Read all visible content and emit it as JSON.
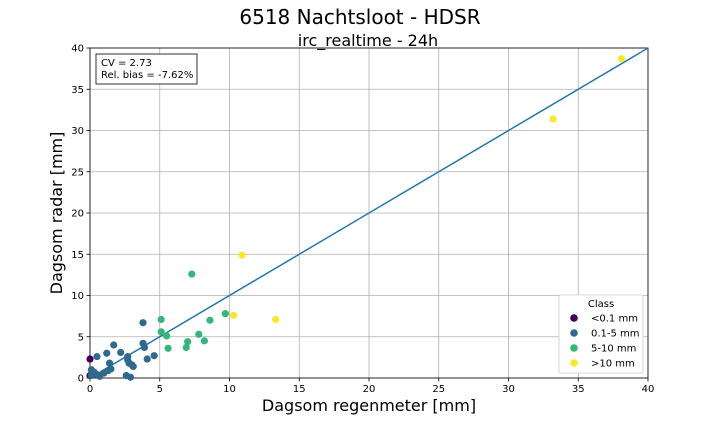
{
  "chart_data": {
    "type": "scatter",
    "title": "6518 Nachtsloot - HDSR",
    "subtitle": "irc_realtime - 24h",
    "xlabel": "Dagsom regenmeter [mm]",
    "ylabel": "Dagsom radar [mm]",
    "xlim": [
      0,
      40
    ],
    "ylim": [
      0,
      40
    ],
    "xticks": [
      "0",
      "5",
      "10",
      "15",
      "20",
      "25",
      "30",
      "35",
      "40"
    ],
    "yticks": [
      "0",
      "5",
      "10",
      "15",
      "20",
      "25",
      "30",
      "35",
      "40"
    ],
    "grid": true,
    "stats": [
      "CV = 2.73",
      "Rel. bias = -7.62%"
    ],
    "reference_line": {
      "points": [
        [
          0,
          0
        ],
        [
          40,
          40
        ]
      ],
      "color": "#1f77b4"
    },
    "legend": {
      "title": "Class",
      "placement": "lower right"
    },
    "series": [
      {
        "name": "<0.1 mm",
        "color": "#440154",
        "points": [
          [
            0.0,
            2.3
          ],
          [
            0.0,
            0.3
          ]
        ]
      },
      {
        "name": "0.1-5 mm",
        "color": "#31688e",
        "points": [
          [
            0.1,
            0.3
          ],
          [
            0.1,
            1.0
          ],
          [
            0.3,
            0.7
          ],
          [
            0.5,
            0.4
          ],
          [
            0.5,
            2.6
          ],
          [
            0.7,
            0.2
          ],
          [
            1.0,
            0.6
          ],
          [
            1.2,
            3.0
          ],
          [
            1.3,
            0.9
          ],
          [
            1.4,
            1.8
          ],
          [
            1.5,
            1.1
          ],
          [
            1.7,
            4.0
          ],
          [
            2.2,
            3.1
          ],
          [
            2.6,
            0.3
          ],
          [
            2.7,
            2.6
          ],
          [
            2.7,
            2.2
          ],
          [
            2.8,
            1.8
          ],
          [
            2.9,
            0.1
          ],
          [
            3.0,
            1.6
          ],
          [
            3.1,
            1.4
          ],
          [
            3.8,
            6.7
          ],
          [
            3.8,
            4.2
          ],
          [
            3.9,
            3.7
          ],
          [
            4.1,
            2.3
          ],
          [
            4.6,
            2.7
          ]
        ]
      },
      {
        "name": "5-10 mm",
        "color": "#35b779",
        "points": [
          [
            5.1,
            7.1
          ],
          [
            5.1,
            5.6
          ],
          [
            5.5,
            5.1
          ],
          [
            5.6,
            3.6
          ],
          [
            6.9,
            3.7
          ],
          [
            7.0,
            4.4
          ],
          [
            7.3,
            12.6
          ],
          [
            7.8,
            5.3
          ],
          [
            8.2,
            4.5
          ],
          [
            8.6,
            7.0
          ],
          [
            9.7,
            7.8
          ]
        ]
      },
      {
        "name": ">10 mm",
        "color": "#fde725",
        "points": [
          [
            10.3,
            7.6
          ],
          [
            10.9,
            14.9
          ],
          [
            13.3,
            7.1
          ],
          [
            33.2,
            31.4
          ],
          [
            38.1,
            38.7
          ]
        ]
      }
    ]
  }
}
